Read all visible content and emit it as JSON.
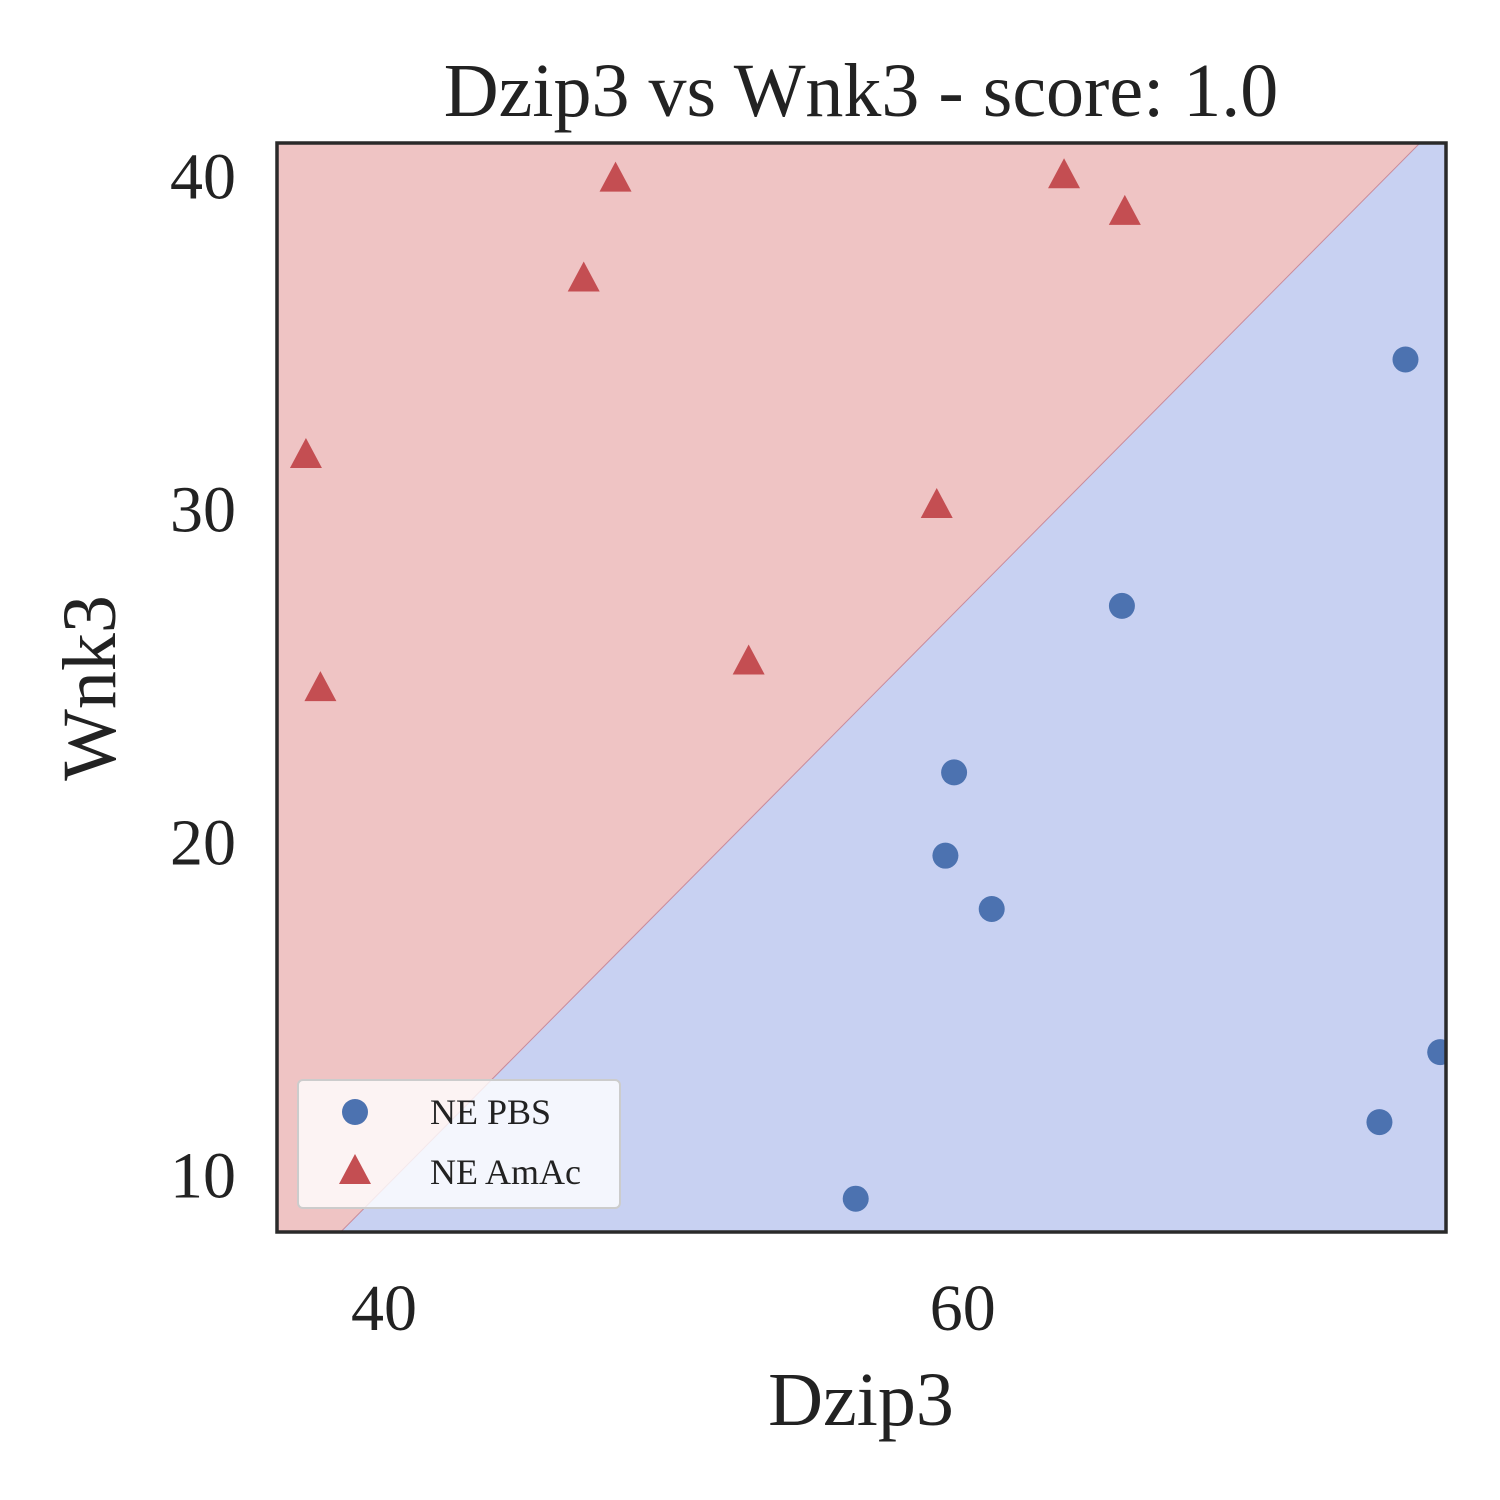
{
  "chart_data": {
    "type": "scatter",
    "title": "Dzip3 vs Wnk3 - score: 1.0",
    "xlabel": "Dzip3",
    "ylabel": "Wnk3",
    "xlim": [
      36.3,
      76.7
    ],
    "ylim": [
      8.3,
      41.0
    ],
    "xticks": [
      {
        "value": 40,
        "label": "40"
      },
      {
        "value": 60,
        "label": "60"
      }
    ],
    "yticks": [
      {
        "value": 10,
        "label": "10"
      },
      {
        "value": 20,
        "label": "20"
      },
      {
        "value": 30,
        "label": "30"
      },
      {
        "value": 40,
        "label": "40"
      }
    ],
    "grid": false,
    "legend_position": "lower-left",
    "decision_regions": {
      "boundary_line": [
        [
          38.5,
          8.3
        ],
        [
          75.8,
          41.0
        ]
      ],
      "upper_left_color": "#efc4c4",
      "lower_right_color": "#c8d1f2",
      "boundary_color": "#c98a9a"
    },
    "series": [
      {
        "name": "NE PBS",
        "marker": "circle",
        "color": "#4c72b0",
        "points": [
          [
            56.3,
            9.3
          ],
          [
            59.4,
            19.6
          ],
          [
            59.7,
            22.1
          ],
          [
            61.0,
            18.0
          ],
          [
            65.5,
            27.1
          ],
          [
            74.4,
            11.6
          ],
          [
            75.3,
            34.5
          ],
          [
            76.5,
            13.7
          ]
        ]
      },
      {
        "name": "NE AmAc",
        "marker": "triangle",
        "color": "#c44e52",
        "points": [
          [
            37.3,
            31.6
          ],
          [
            37.8,
            24.6
          ],
          [
            46.9,
            36.9
          ],
          [
            48.0,
            39.9
          ],
          [
            52.6,
            25.4
          ],
          [
            59.1,
            30.1
          ],
          [
            63.5,
            40.0
          ],
          [
            65.6,
            38.9
          ]
        ]
      }
    ]
  }
}
